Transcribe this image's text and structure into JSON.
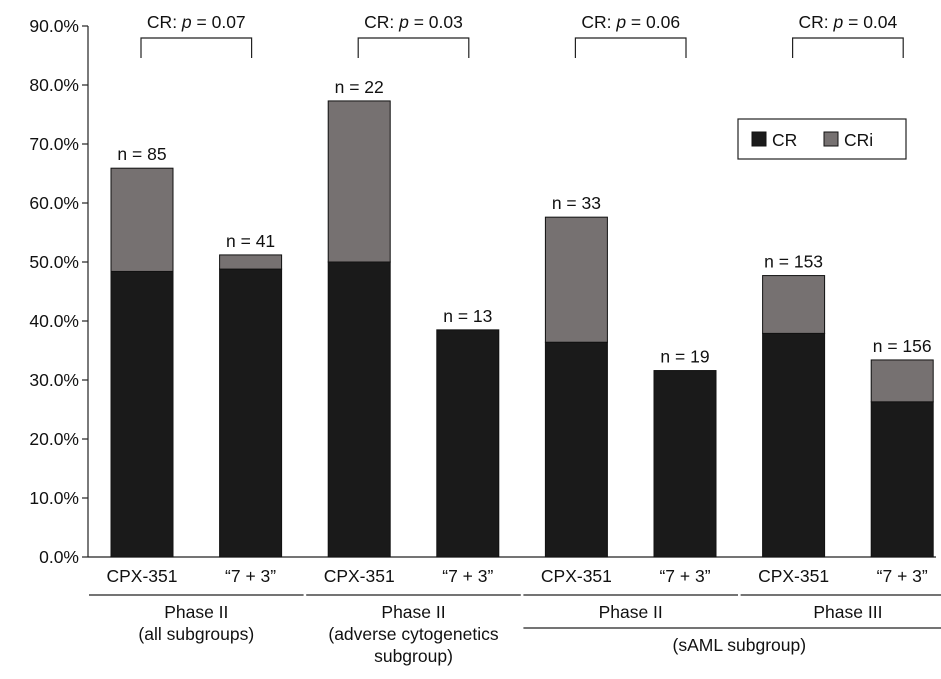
{
  "chart_data": {
    "type": "bar",
    "stacked": true,
    "title": "",
    "xlabel": "",
    "ylabel": "",
    "ylim": [
      0,
      90
    ],
    "y_ticks": [
      "0.0%",
      "10.0%",
      "20.0%",
      "30.0%",
      "40.0%",
      "50.0%",
      "60.0%",
      "70.0%",
      "80.0%",
      "90.0%"
    ],
    "y_tick_values": [
      0,
      10,
      20,
      30,
      40,
      50,
      60,
      70,
      80,
      90
    ],
    "grid": false,
    "legend_position": "top-right",
    "categories": [
      "CPX-351",
      "“7 + 3”",
      "CPX-351",
      "“7 + 3”",
      "CPX-351",
      "“7 + 3”",
      "CPX-351",
      "“7 + 3”"
    ],
    "n_labels": [
      "n = 85",
      "n = 41",
      "n = 22",
      "n = 13",
      "n = 33",
      "n = 19",
      "n = 153",
      "n = 156"
    ],
    "series": [
      {
        "name": "CR",
        "color": "#1a1a1a",
        "values": [
          48.4,
          48.8,
          50.0,
          38.5,
          36.4,
          31.6,
          37.9,
          26.3
        ]
      },
      {
        "name": "CRi",
        "color": "#767171",
        "values": [
          17.5,
          2.4,
          27.3,
          0.0,
          21.2,
          0.0,
          9.8,
          7.1
        ]
      }
    ],
    "comparisons": [
      {
        "label_prefix": "CR: ",
        "p_symbol": "p",
        "label_suffix": "  =  0.07",
        "bars": [
          0,
          1
        ]
      },
      {
        "label_prefix": "CR: ",
        "p_symbol": "p",
        "label_suffix": " = 0.03",
        "bars": [
          2,
          3
        ]
      },
      {
        "label_prefix": "CR: ",
        "p_symbol": "p",
        "label_suffix": " = 0.06",
        "bars": [
          4,
          5
        ]
      },
      {
        "label_prefix": "CR: ",
        "p_symbol": "p",
        "label_suffix": " = 0.04",
        "bars": [
          6,
          7
        ]
      }
    ],
    "group_labels": [
      {
        "lines": [
          "Phase II",
          "(all subgroups)"
        ],
        "bars": [
          0,
          1
        ]
      },
      {
        "lines": [
          "Phase II",
          "(adverse cytogenetics",
          "subgroup)"
        ],
        "bars": [
          2,
          3
        ]
      },
      {
        "lines": [
          "Phase II"
        ],
        "bars": [
          4,
          5
        ]
      },
      {
        "lines": [
          "Phase III"
        ],
        "bars": [
          6,
          7
        ]
      }
    ],
    "super_group_labels": [
      {
        "lines": [
          "(sAML subgroup)"
        ],
        "bars": [
          4,
          7
        ]
      }
    ]
  }
}
